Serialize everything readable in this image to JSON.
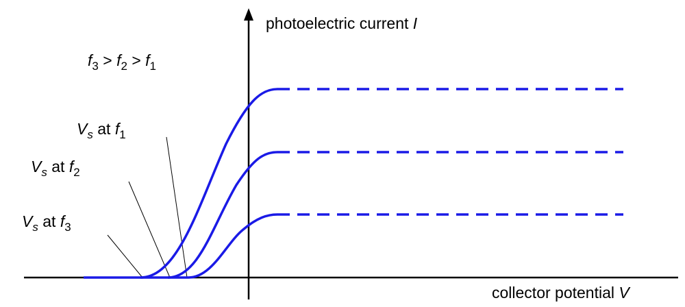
{
  "y_axis_label": [
    {
      "text": "photoelectric current "
    },
    {
      "text": "I",
      "italic": true
    }
  ],
  "x_axis_label": [
    {
      "text": "collector potential "
    },
    {
      "text": "V",
      "italic": true
    }
  ],
  "condition": [
    {
      "text": "f",
      "italic": true
    },
    {
      "text": "3",
      "sub": true
    },
    {
      "text": " > "
    },
    {
      "text": "f",
      "italic": true
    },
    {
      "text": "2",
      "sub": true
    },
    {
      "text": " > "
    },
    {
      "text": "f",
      "italic": true
    },
    {
      "text": "1",
      "sub": true
    }
  ],
  "annotations": [
    [
      {
        "text": "V",
        "italic": true
      },
      {
        "text": "s",
        "italic": true,
        "sub": true
      },
      {
        "text": " at "
      },
      {
        "text": "f",
        "italic": true
      },
      {
        "text": "1",
        "sub": true
      }
    ],
    [
      {
        "text": "V",
        "italic": true
      },
      {
        "text": "s",
        "italic": true,
        "sub": true
      },
      {
        "text": " at "
      },
      {
        "text": "f",
        "italic": true
      },
      {
        "text": "2",
        "sub": true
      }
    ],
    [
      {
        "text": "V",
        "italic": true
      },
      {
        "text": "s",
        "italic": true,
        "sub": true
      },
      {
        "text": " at "
      },
      {
        "text": "f",
        "italic": true
      },
      {
        "text": "3",
        "sub": true
      }
    ]
  ]
}
